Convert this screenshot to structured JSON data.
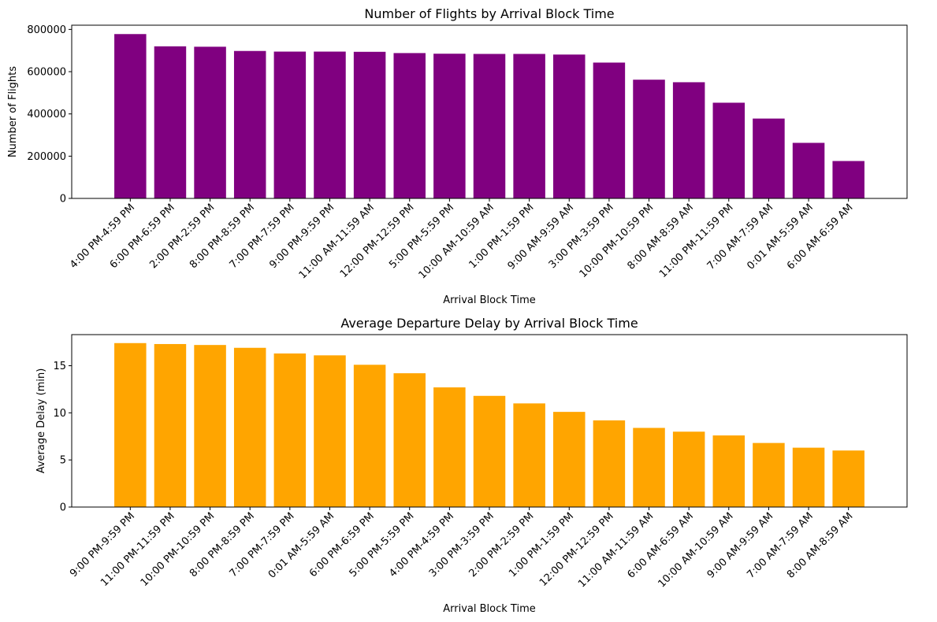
{
  "chart_data": [
    {
      "type": "bar",
      "title": "Number of Flights by Arrival Block Time",
      "xlabel": "Arrival Block Time",
      "ylabel": "Number of Flights",
      "color": "#800080",
      "ylim": [
        0,
        820000
      ],
      "yticks": [
        0,
        200000,
        400000,
        600000,
        800000
      ],
      "categories": [
        "4:00 PM-4:59 PM",
        "6:00 PM-6:59 PM",
        "2:00 PM-2:59 PM",
        "8:00 PM-8:59 PM",
        "7:00 PM-7:59 PM",
        "9:00 PM-9:59 PM",
        "11:00 AM-11:59 AM",
        "12:00 PM-12:59 PM",
        "5:00 PM-5:59 PM",
        "10:00 AM-10:59 AM",
        "1:00 PM-1:59 PM",
        "9:00 AM-9:59 AM",
        "3:00 PM-3:59 PM",
        "10:00 PM-10:59 PM",
        "8:00 AM-8:59 AM",
        "11:00 PM-11:59 PM",
        "7:00 AM-7:59 AM",
        "0:01 AM-5:59 AM",
        "6:00 AM-6:59 AM"
      ],
      "values": [
        778000,
        720000,
        718000,
        698000,
        695000,
        695000,
        694000,
        688000,
        685000,
        684000,
        684000,
        681000,
        643000,
        562000,
        550000,
        453000,
        378000,
        263000,
        177000
      ]
    },
    {
      "type": "bar",
      "title": "Average Departure Delay by Arrival Block Time",
      "xlabel": "Arrival Block Time",
      "ylabel": "Average Delay (min)",
      "color": "#FFA500",
      "ylim": [
        0,
        18.3
      ],
      "yticks": [
        0,
        5,
        10,
        15
      ],
      "categories": [
        "9:00 PM-9:59 PM",
        "11:00 PM-11:59 PM",
        "10:00 PM-10:59 PM",
        "8:00 PM-8:59 PM",
        "7:00 PM-7:59 PM",
        "0:01 AM-5:59 AM",
        "6:00 PM-6:59 PM",
        "5:00 PM-5:59 PM",
        "4:00 PM-4:59 PM",
        "3:00 PM-3:59 PM",
        "2:00 PM-2:59 PM",
        "1:00 PM-1:59 PM",
        "12:00 PM-12:59 PM",
        "11:00 AM-11:59 AM",
        "6:00 AM-6:59 AM",
        "10:00 AM-10:59 AM",
        "9:00 AM-9:59 AM",
        "7:00 AM-7:59 AM",
        "8:00 AM-8:59 AM"
      ],
      "values": [
        17.4,
        17.3,
        17.2,
        16.9,
        16.3,
        16.1,
        15.1,
        14.2,
        12.7,
        11.8,
        11.0,
        10.1,
        9.2,
        8.4,
        8.0,
        7.6,
        6.8,
        6.3,
        6.0
      ]
    }
  ]
}
